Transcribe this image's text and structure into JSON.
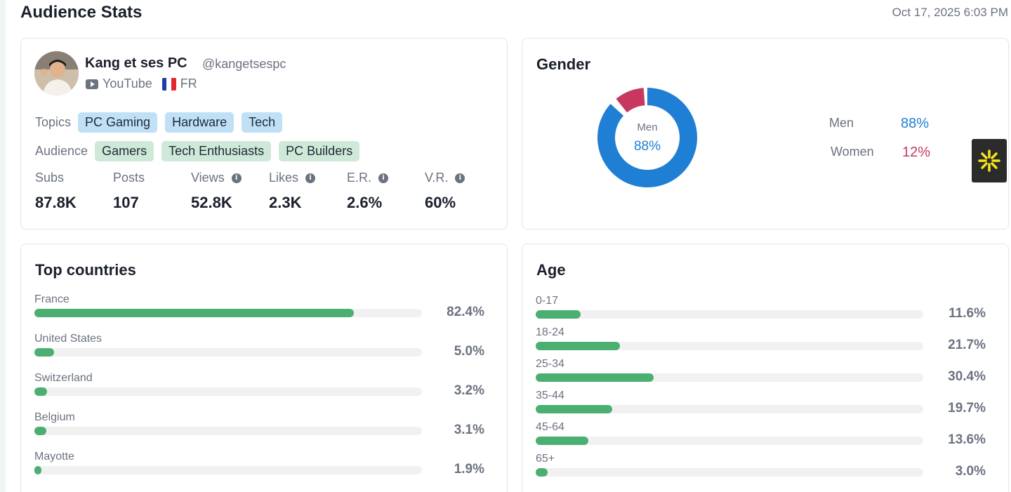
{
  "header": {
    "title": "Audience Stats",
    "timestamp": "Oct 17, 2025 6:03 PM"
  },
  "profile": {
    "name": "Kang et ses PC",
    "handle": "@kangetsespc",
    "platform": "YouTube",
    "platform_icon": "youtube-icon",
    "country": "FR",
    "topics_label": "Topics",
    "topics": [
      "PC Gaming",
      "Hardware",
      "Tech"
    ],
    "audience_label": "Audience",
    "audience": [
      "Gamers",
      "Tech Enthusiasts",
      "PC Builders"
    ],
    "stats": [
      {
        "label": "Subs",
        "value": "87.8K",
        "info": false
      },
      {
        "label": "Posts",
        "value": "107",
        "info": false
      },
      {
        "label": "Views",
        "value": "52.8K",
        "info": true
      },
      {
        "label": "Likes",
        "value": "2.3K",
        "info": true
      },
      {
        "label": "E.R.",
        "value": "2.6%",
        "info": true
      },
      {
        "label": "V.R.",
        "value": "60%",
        "info": true
      }
    ]
  },
  "gender": {
    "title": "Gender",
    "center_label": "Men",
    "center_value": "88%",
    "items": [
      {
        "label": "Men",
        "value": "88%",
        "fraction": 0.88,
        "color": "#1f7fd4"
      },
      {
        "label": "Women",
        "value": "12%",
        "fraction": 0.12,
        "color": "#c7375e"
      }
    ]
  },
  "countries": {
    "title": "Top countries",
    "items": [
      {
        "label": "France",
        "value": "82.4%",
        "pct": 82.4
      },
      {
        "label": "United States",
        "value": "5.0%",
        "pct": 5.0
      },
      {
        "label": "Switzerland",
        "value": "3.2%",
        "pct": 3.2
      },
      {
        "label": "Belgium",
        "value": "3.1%",
        "pct": 3.1
      },
      {
        "label": "Mayotte",
        "value": "1.9%",
        "pct": 1.9
      }
    ]
  },
  "age": {
    "title": "Age",
    "items": [
      {
        "label": "0-17",
        "value": "11.6%",
        "pct": 11.6
      },
      {
        "label": "18-24",
        "value": "21.7%",
        "pct": 21.7
      },
      {
        "label": "25-34",
        "value": "30.4%",
        "pct": 30.4
      },
      {
        "label": "35-44",
        "value": "19.7%",
        "pct": 19.7
      },
      {
        "label": "45-64",
        "value": "13.6%",
        "pct": 13.6
      },
      {
        "label": "65+",
        "value": "3.0%",
        "pct": 3.0
      }
    ]
  },
  "colors": {
    "bar": "#4caf72",
    "track": "#f1f1f1",
    "accent_widget": "#f5e61b"
  }
}
